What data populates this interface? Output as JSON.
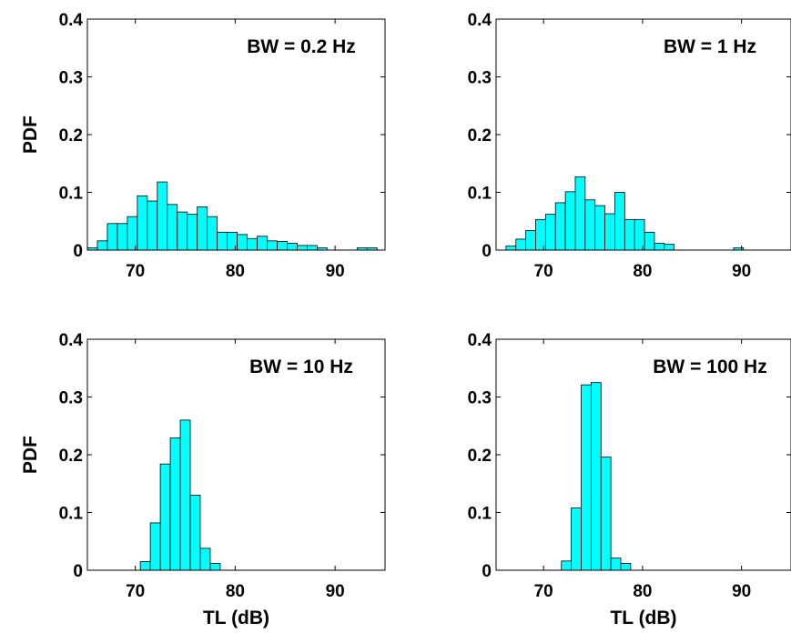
{
  "chart_data": [
    {
      "type": "bar",
      "annotation": "BW = 0.2 Hz",
      "xlabel": "",
      "ylabel": "PDF",
      "xlim": [
        65.2,
        95
      ],
      "ylim": [
        0,
        0.4
      ],
      "xticks": [
        70,
        80,
        90
      ],
      "yticks": [
        0,
        0.1,
        0.2,
        0.3,
        0.4
      ],
      "bin_start": 65.2,
      "bin_width": 1,
      "values": [
        0.004,
        0.016,
        0.046,
        0.046,
        0.058,
        0.094,
        0.085,
        0.118,
        0.079,
        0.066,
        0.062,
        0.075,
        0.058,
        0.031,
        0.031,
        0.027,
        0.02,
        0.024,
        0.016,
        0.015,
        0.012,
        0.008,
        0.008,
        0.004,
        0.0,
        0.0,
        0.0,
        0.004,
        0.004
      ],
      "bar_color": "#00ffff"
    },
    {
      "type": "bar",
      "annotation": "BW = 1 Hz",
      "xlabel": "",
      "ylabel": "",
      "xlim": [
        65.2,
        95
      ],
      "ylim": [
        0,
        0.4
      ],
      "xticks": [
        70,
        80,
        90
      ],
      "yticks": [
        0,
        0.1,
        0.2,
        0.3,
        0.4
      ],
      "bin_start": 66.2,
      "bin_width": 1,
      "values": [
        0.007,
        0.019,
        0.034,
        0.053,
        0.062,
        0.082,
        0.101,
        0.127,
        0.087,
        0.077,
        0.063,
        0.1,
        0.053,
        0.053,
        0.031,
        0.012,
        0.01,
        0.0,
        0.0,
        0.0,
        0.0,
        0.0,
        0.0,
        0.004
      ],
      "bar_color": "#00ffff"
    },
    {
      "type": "bar",
      "annotation": "BW = 10 Hz",
      "xlabel": "TL (dB)",
      "ylabel": "PDF",
      "xlim": [
        65.2,
        95
      ],
      "ylim": [
        0,
        0.4
      ],
      "xticks": [
        70,
        80,
        90
      ],
      "yticks": [
        0,
        0.1,
        0.2,
        0.3,
        0.4
      ],
      "bin_start": 70.5,
      "bin_width": 1,
      "values": [
        0.015,
        0.082,
        0.184,
        0.229,
        0.26,
        0.13,
        0.038,
        0.012
      ],
      "bar_color": "#00ffff"
    },
    {
      "type": "bar",
      "annotation": "BW = 100 Hz",
      "xlabel": "TL (dB)",
      "ylabel": "",
      "xlim": [
        65.2,
        95
      ],
      "ylim": [
        0,
        0.4
      ],
      "xticks": [
        70,
        80,
        90
      ],
      "yticks": [
        0,
        0.1,
        0.2,
        0.3,
        0.4
      ],
      "bin_start": 71.8,
      "bin_width": 1,
      "values": [
        0.016,
        0.108,
        0.321,
        0.325,
        0.196,
        0.021,
        0.012
      ],
      "bar_color": "#00ffff"
    }
  ]
}
